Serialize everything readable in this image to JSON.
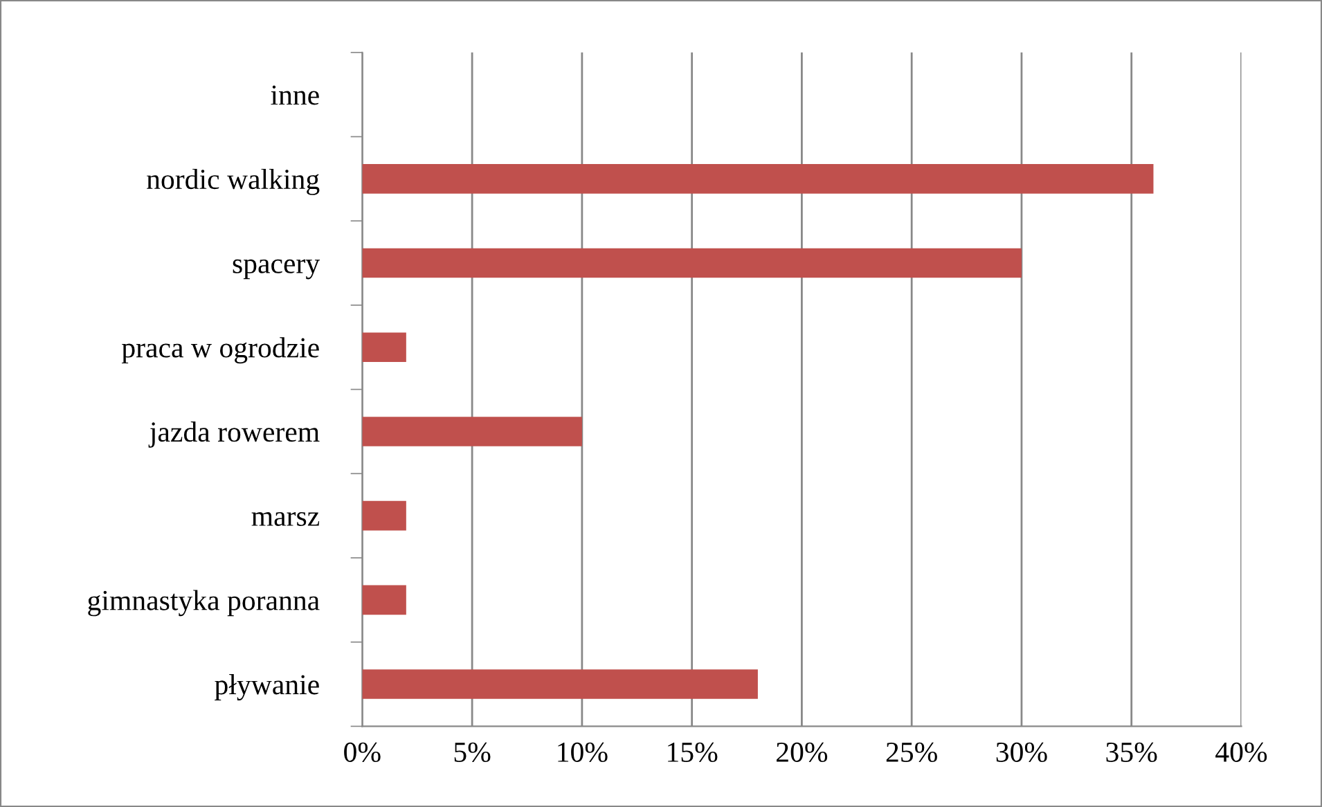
{
  "chart_data": {
    "type": "bar",
    "orientation": "horizontal",
    "categories": [
      "inne",
      "nordic walking",
      "spacery",
      "praca w ogrodzie",
      "jazda rowerem",
      "marsz",
      "gimnastyka poranna",
      "pływanie"
    ],
    "values": [
      0,
      36,
      30,
      2,
      10,
      2,
      2,
      18
    ],
    "color": "#c0504d",
    "xlim": [
      0,
      40
    ],
    "xticks": [
      {
        "value": 0,
        "label": "0%"
      },
      {
        "value": 5,
        "label": "5%"
      },
      {
        "value": 10,
        "label": "10%"
      },
      {
        "value": 15,
        "label": "15%"
      },
      {
        "value": 20,
        "label": "20%"
      },
      {
        "value": 25,
        "label": "25%"
      },
      {
        "value": 30,
        "label": "30%"
      },
      {
        "value": 35,
        "label": "35%"
      },
      {
        "value": 40,
        "label": "40%"
      }
    ],
    "grid": "x"
  }
}
